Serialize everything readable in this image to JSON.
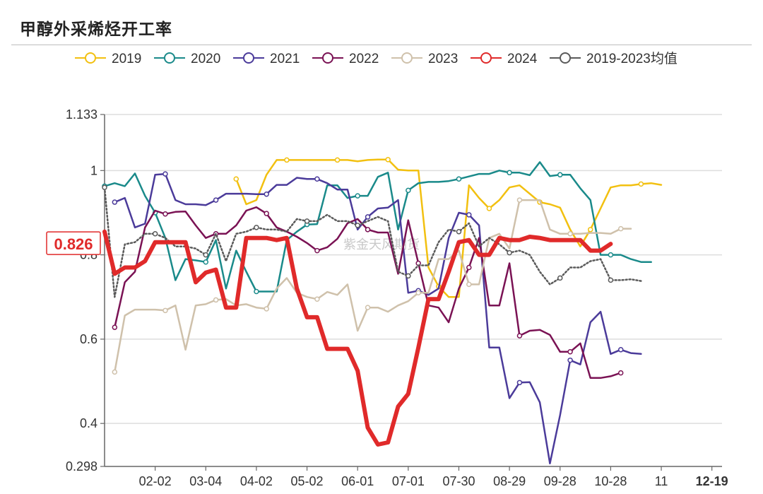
{
  "title": "甲醇外采烯烃开工率",
  "watermark": "紫金天风期货",
  "chart_data": {
    "type": "line",
    "title": "甲醇外采烯烃开工率",
    "ylim": [
      0.298,
      1.133
    ],
    "y_ticks": [
      0.298,
      0.4,
      0.6,
      0.8,
      1,
      1.133
    ],
    "y_tick_labels": [
      "0.298",
      "0.4",
      "0.6",
      "0.8",
      "1",
      "1.133"
    ],
    "x_count": 52,
    "x_ticks": [
      {
        "index": 5,
        "label": "02-02"
      },
      {
        "index": 10,
        "label": "03-04"
      },
      {
        "index": 15,
        "label": "04-02"
      },
      {
        "index": 20,
        "label": "05-02"
      },
      {
        "index": 25,
        "label": "06-01"
      },
      {
        "index": 30,
        "label": "07-01"
      },
      {
        "index": 35,
        "label": "07-30"
      },
      {
        "index": 40,
        "label": "08-29"
      },
      {
        "index": 45,
        "label": "09-28"
      },
      {
        "index": 50,
        "label": "10-28"
      },
      {
        "index": 55,
        "label": "11"
      },
      {
        "index": 60,
        "label": "12-19",
        "highlight": true
      }
    ],
    "current_value_label": "0.826",
    "series": [
      {
        "name": "2019",
        "color": "#f2c010",
        "width": 2.5,
        "dash": "",
        "x_start": 13,
        "values": [
          0.98,
          0.92,
          0.93,
          0.99,
          1.025,
          1.025,
          1.025,
          1.025,
          1.025,
          1.025,
          1.025,
          1.025,
          1.022,
          1.025,
          1.026,
          1.026,
          1.002,
          1.0,
          1.0,
          0.77,
          0.725,
          0.7,
          0.7,
          0.965,
          0.935,
          0.91,
          0.93,
          0.96,
          0.965,
          0.945,
          0.925,
          0.92,
          0.912,
          0.86,
          0.82,
          0.86,
          0.91,
          0.96,
          0.965,
          0.965,
          0.968,
          0.97,
          0.966
        ]
      },
      {
        "name": "2020",
        "color": "#1a8a8a",
        "width": 2.5,
        "dash": "",
        "x_start": 0,
        "values": [
          0.963,
          0.97,
          0.963,
          0.993,
          0.94,
          0.9,
          0.84,
          0.74,
          0.79,
          0.787,
          0.783,
          0.835,
          0.72,
          0.81,
          0.76,
          0.713,
          0.713,
          0.713,
          0.835,
          0.855,
          0.872,
          0.873,
          0.965,
          0.965,
          0.935,
          0.94,
          0.94,
          0.985,
          0.995,
          0.86,
          0.953,
          0.97,
          0.973,
          0.973,
          0.975,
          0.98,
          0.986,
          0.992,
          0.992,
          1.0,
          0.995,
          0.995,
          0.989,
          1.02,
          0.987,
          0.99,
          0.99,
          0.958,
          0.93,
          0.8,
          0.8,
          0.8,
          0.79,
          0.783,
          0.783
        ]
      },
      {
        "name": "2021",
        "color": "#4b3b9a",
        "width": 2.5,
        "dash": "",
        "x_start": 1,
        "values": [
          0.925,
          0.935,
          0.865,
          0.874,
          0.99,
          0.992,
          0.93,
          0.92,
          0.92,
          0.918,
          0.93,
          0.945,
          0.945,
          0.945,
          0.944,
          0.944,
          0.966,
          0.966,
          0.983,
          0.98,
          0.98,
          0.97,
          0.955,
          0.955,
          0.86,
          0.89,
          0.91,
          0.912,
          0.93,
          0.71,
          0.715,
          0.705,
          0.72,
          0.84,
          0.9,
          0.895,
          0.87,
          0.58,
          0.58,
          0.46,
          0.497,
          0.498,
          0.45,
          0.305,
          0.42,
          0.55,
          0.54,
          0.64,
          0.665,
          0.565,
          0.575,
          0.567,
          0.565
        ]
      },
      {
        "name": "2022",
        "color": "#7a1254",
        "width": 2.5,
        "dash": "",
        "x_start": 1,
        "values": [
          0.628,
          0.735,
          0.76,
          0.865,
          0.905,
          0.897,
          0.902,
          0.903,
          0.87,
          0.84,
          0.85,
          0.85,
          0.87,
          0.905,
          0.913,
          0.898,
          0.865,
          0.855,
          0.843,
          0.828,
          0.81,
          0.818,
          0.838,
          0.875,
          0.885,
          0.86,
          0.853,
          0.853,
          0.755,
          0.882,
          0.78,
          0.68,
          0.675,
          0.64,
          0.72,
          0.77,
          0.84,
          0.68,
          0.68,
          0.78,
          0.608,
          0.62,
          0.622,
          0.61,
          0.57,
          0.57,
          0.59,
          0.508,
          0.508,
          0.512,
          0.52
        ]
      },
      {
        "name": "2023",
        "color": "#cfc1ab",
        "width": 2.5,
        "dash": "",
        "x_start": 1,
        "values": [
          0.522,
          0.656,
          0.67,
          0.67,
          0.67,
          0.668,
          0.68,
          0.575,
          0.68,
          0.683,
          0.693,
          0.695,
          0.68,
          0.683,
          0.675,
          0.672,
          0.72,
          0.745,
          0.71,
          0.7,
          0.695,
          0.712,
          0.705,
          0.73,
          0.62,
          0.675,
          0.675,
          0.665,
          0.68,
          0.69,
          0.71,
          0.71,
          0.79,
          0.79,
          0.81,
          0.73,
          0.73,
          0.84,
          0.85,
          0.815,
          0.93,
          0.93,
          0.93,
          0.86,
          0.85,
          0.85,
          0.85,
          0.852,
          0.852,
          0.85,
          0.862,
          0.862
        ]
      },
      {
        "name": "2024",
        "color": "#e02a2a",
        "width": 6,
        "dash": "",
        "x_start": 0,
        "values": [
          0.855,
          0.755,
          0.77,
          0.77,
          0.785,
          0.83,
          0.83,
          0.83,
          0.83,
          0.735,
          0.758,
          0.765,
          0.675,
          0.675,
          0.84,
          0.84,
          0.84,
          0.835,
          0.84,
          0.72,
          0.652,
          0.652,
          0.577,
          0.577,
          0.577,
          0.525,
          0.39,
          0.35,
          0.355,
          0.44,
          0.47,
          0.58,
          0.695,
          0.695,
          0.76,
          0.83,
          0.835,
          0.8,
          0.8,
          0.84,
          0.835,
          0.835,
          0.843,
          0.84,
          0.835,
          0.835,
          0.835,
          0.835,
          0.81,
          0.81,
          0.826
        ]
      },
      {
        "name": "2019-2023均值",
        "color": "#5a5a5a",
        "width": 2.5,
        "dash": "2,3",
        "x_start": 0,
        "values": [
          0.96,
          0.7,
          0.825,
          0.83,
          0.85,
          0.85,
          0.84,
          0.82,
          0.82,
          0.815,
          0.8,
          0.85,
          0.785,
          0.85,
          0.855,
          0.865,
          0.86,
          0.86,
          0.855,
          0.885,
          0.88,
          0.88,
          0.895,
          0.88,
          0.88,
          0.87,
          0.88,
          0.89,
          0.88,
          0.76,
          0.75,
          0.775,
          0.775,
          0.83,
          0.86,
          0.855,
          0.875,
          0.82,
          0.84,
          0.825,
          0.805,
          0.81,
          0.8,
          0.76,
          0.73,
          0.745,
          0.77,
          0.77,
          0.785,
          0.79,
          0.74,
          0.74,
          0.742,
          0.738
        ]
      }
    ]
  }
}
